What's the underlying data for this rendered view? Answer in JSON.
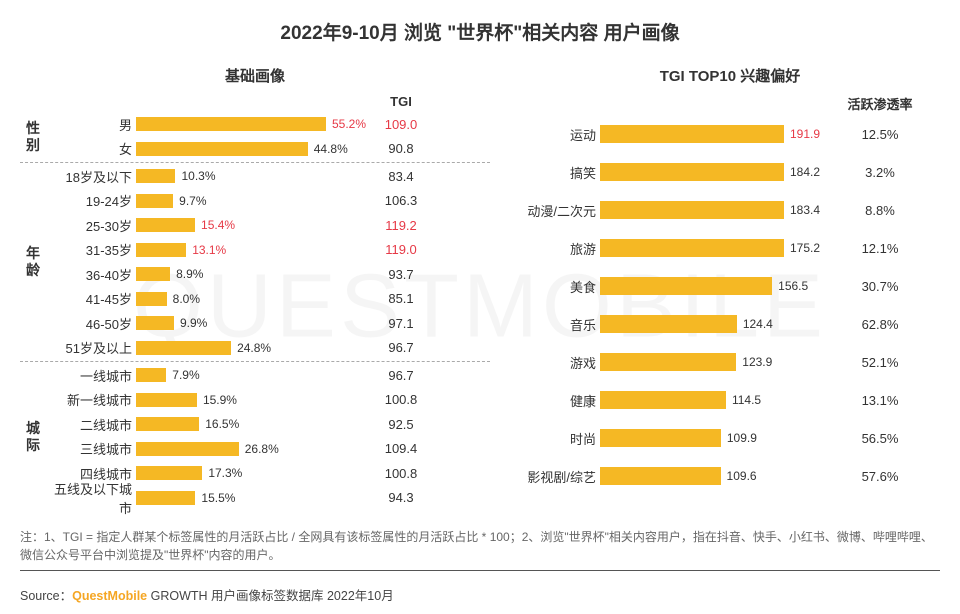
{
  "title": "2022年9-10月 浏览 \"世界杯\"相关内容 用户画像",
  "watermark": "QUESTMOBILE",
  "left": {
    "title": "基础画像",
    "tgi_header": "TGI",
    "bar_color": "#f5b824",
    "bar_color_highlight": "#f5b824",
    "label_color": "#333333",
    "highlight_color": "#e63946",
    "max_value": 60,
    "groups": [
      {
        "name": "性别",
        "items": [
          {
            "label": "男",
            "value": 55.2,
            "value_str": "55.2%",
            "tgi": "109.0",
            "highlight": true
          },
          {
            "label": "女",
            "value": 44.8,
            "value_str": "44.8%",
            "tgi": "90.8",
            "highlight": false
          }
        ]
      },
      {
        "name": "年龄",
        "items": [
          {
            "label": "18岁及以下",
            "value": 10.3,
            "value_str": "10.3%",
            "tgi": "83.4",
            "highlight": false
          },
          {
            "label": "19-24岁",
            "value": 9.7,
            "value_str": "9.7%",
            "tgi": "106.3",
            "highlight": false
          },
          {
            "label": "25-30岁",
            "value": 15.4,
            "value_str": "15.4%",
            "tgi": "119.2",
            "highlight": true
          },
          {
            "label": "31-35岁",
            "value": 13.1,
            "value_str": "13.1%",
            "tgi": "119.0",
            "highlight": true
          },
          {
            "label": "36-40岁",
            "value": 8.9,
            "value_str": "8.9%",
            "tgi": "93.7",
            "highlight": false
          },
          {
            "label": "41-45岁",
            "value": 8.0,
            "value_str": "8.0%",
            "tgi": "85.1",
            "highlight": false
          },
          {
            "label": "46-50岁",
            "value": 9.9,
            "value_str": "9.9%",
            "tgi": "97.1",
            "highlight": false
          },
          {
            "label": "51岁及以上",
            "value": 24.8,
            "value_str": "24.8%",
            "tgi": "96.7",
            "highlight": false
          }
        ]
      },
      {
        "name": "城际",
        "items": [
          {
            "label": "一线城市",
            "value": 7.9,
            "value_str": "7.9%",
            "tgi": "96.7",
            "highlight": false
          },
          {
            "label": "新一线城市",
            "value": 15.9,
            "value_str": "15.9%",
            "tgi": "100.8",
            "highlight": false
          },
          {
            "label": "二线城市",
            "value": 16.5,
            "value_str": "16.5%",
            "tgi": "92.5",
            "highlight": false
          },
          {
            "label": "三线城市",
            "value": 26.8,
            "value_str": "26.8%",
            "tgi": "109.4",
            "highlight": false
          },
          {
            "label": "四线城市",
            "value": 17.3,
            "value_str": "17.3%",
            "tgi": "100.8",
            "highlight": false
          },
          {
            "label": "五线及以下城市",
            "value": 15.5,
            "value_str": "15.5%",
            "tgi": "94.3",
            "highlight": false
          }
        ]
      }
    ]
  },
  "right": {
    "title": "TGI TOP10 兴趣偏好",
    "value_header": "活跃渗透率",
    "bar_color": "#f5b824",
    "label_color": "#333333",
    "highlight_color": "#e63946",
    "max_value": 200,
    "items": [
      {
        "label": "运动",
        "tgi": 191.9,
        "tgi_str": "191.9",
        "penetration": "12.5%",
        "highlight": true
      },
      {
        "label": "搞笑",
        "tgi": 184.2,
        "tgi_str": "184.2",
        "penetration": "3.2%",
        "highlight": false
      },
      {
        "label": "动漫/二次元",
        "tgi": 183.4,
        "tgi_str": "183.4",
        "penetration": "8.8%",
        "highlight": false
      },
      {
        "label": "旅游",
        "tgi": 175.2,
        "tgi_str": "175.2",
        "penetration": "12.1%",
        "highlight": false
      },
      {
        "label": "美食",
        "tgi": 156.5,
        "tgi_str": "156.5",
        "penetration": "30.7%",
        "highlight": false
      },
      {
        "label": "音乐",
        "tgi": 124.4,
        "tgi_str": "124.4",
        "penetration": "62.8%",
        "highlight": false
      },
      {
        "label": "游戏",
        "tgi": 123.9,
        "tgi_str": "123.9",
        "penetration": "52.1%",
        "highlight": false
      },
      {
        "label": "健康",
        "tgi": 114.5,
        "tgi_str": "114.5",
        "penetration": "13.1%",
        "highlight": false
      },
      {
        "label": "时尚",
        "tgi": 109.9,
        "tgi_str": "109.9",
        "penetration": "56.5%",
        "highlight": false
      },
      {
        "label": "影视剧/综艺",
        "tgi": 109.6,
        "tgi_str": "109.6",
        "penetration": "57.6%",
        "highlight": false
      }
    ]
  },
  "footnote": "注：1、TGI = 指定人群某个标签属性的月活跃占比 / 全网具有该标签属性的月活跃占比 * 100；2、浏览\"世界杯\"相关内容用户，指在抖音、快手、小红书、微博、哔哩哔哩、微信公众号平台中浏览提及\"世界杯\"内容的用户。",
  "source_prefix": "Source：",
  "source_brand": "QuestMobile",
  "source_suffix": " GROWTH 用户画像标签数据库 2022年10月"
}
